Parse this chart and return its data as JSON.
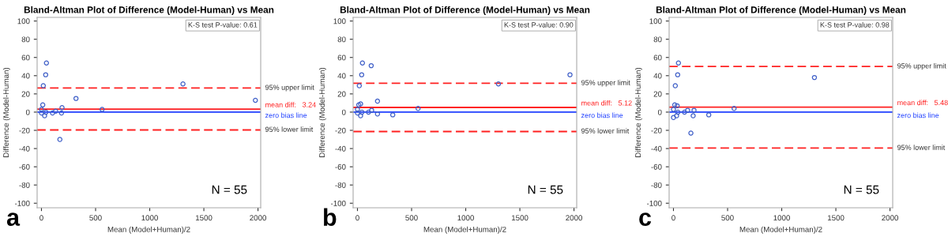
{
  "chart_data": [
    {
      "type": "scatter",
      "title": "Bland-Altman Plot of Difference (Model-Human) vs Mean",
      "xlabel": "Mean (Model+Human)/2",
      "ylabel": "Difference (Model-Human)",
      "marker": "circle",
      "grid": false,
      "legend": false,
      "xlim": [
        -40,
        2025
      ],
      "ylim": [
        -105,
        104
      ],
      "xticks": [
        0,
        500,
        1000,
        1500,
        2000
      ],
      "yticks": [
        -100,
        -80,
        -60,
        -40,
        -20,
        0,
        20,
        40,
        60,
        80,
        100
      ],
      "series": [
        {
          "color": "#4060c8",
          "x": [
            46,
            39,
            17,
            1307,
            1976,
            319,
            560,
            190,
            185,
            131,
            102,
            170,
            29,
            12,
            0,
            41,
            0
          ],
          "values": [
            54,
            41,
            29,
            31,
            13,
            15,
            3,
            5,
            -1,
            1,
            -1,
            -30,
            -4,
            8,
            3,
            0,
            -1
          ]
        }
      ],
      "ref_lines": [
        {
          "axis": "y",
          "value": 26.5,
          "label": "95% upper limit",
          "color": "#ff2020",
          "line_style": "dashed"
        },
        {
          "axis": "y",
          "value": 3.24,
          "label": "mean diff:   3.24",
          "color": "#ff2020",
          "line_style": "solid"
        },
        {
          "axis": "y",
          "value": 0,
          "label": "zero bias line",
          "color": "#2040ff",
          "line_style": "solid"
        },
        {
          "axis": "y",
          "value": -19.6,
          "label": "95% lower limit",
          "color": "#ff2020",
          "line_style": "dashed"
        }
      ],
      "annotations": [
        "K-S test P-value: 0.61",
        "N = 55",
        "a"
      ]
    },
    {
      "type": "scatter",
      "title": "Bland-Altman Plot of Difference (Model-Human) vs Mean",
      "xlabel": "Mean (Model+Human)/2",
      "ylabel": "Difference (Model-Human)",
      "marker": "circle",
      "grid": false,
      "legend": false,
      "xlim": [
        -40,
        2025
      ],
      "ylim": [
        -105,
        104
      ],
      "xticks": [
        0,
        500,
        1000,
        1500,
        2000
      ],
      "yticks": [
        -100,
        -80,
        -60,
        -40,
        -20,
        0,
        20,
        40,
        60,
        80,
        100
      ],
      "series": [
        {
          "color": "#4060c8",
          "x": [
            46,
            39,
            127,
            1963,
            1302,
            17,
            185,
            29,
            12,
            560,
            131,
            102,
            185,
            326,
            29,
            41,
            0,
            0
          ],
          "values": [
            54,
            41,
            51,
            41,
            31,
            29,
            12,
            9,
            8,
            4,
            2,
            0,
            -2,
            -3,
            -4,
            0,
            3,
            -1
          ]
        }
      ],
      "ref_lines": [
        {
          "axis": "y",
          "value": 31.7,
          "label": "95% upper limit",
          "color": "#ff2020",
          "line_style": "dashed"
        },
        {
          "axis": "y",
          "value": 5.12,
          "label": "mean diff:   5.12",
          "color": "#ff2020",
          "line_style": "solid"
        },
        {
          "axis": "y",
          "value": 0,
          "label": "zero bias line",
          "color": "#2040ff",
          "line_style": "solid"
        },
        {
          "axis": "y",
          "value": -21.3,
          "label": "95% lower limit",
          "color": "#ff2020",
          "line_style": "dashed"
        }
      ],
      "annotations": [
        "K-S test P-value: 0.90",
        "N = 55",
        "b"
      ]
    },
    {
      "type": "scatter",
      "title": "Bland-Altman Plot of Difference (Model-Human) vs Mean",
      "xlabel": "Mean (Model+Human)/2",
      "ylabel": "Difference (Model-Human)",
      "marker": "circle",
      "grid": false,
      "legend": false,
      "xlim": [
        -40,
        2025
      ],
      "ylim": [
        -105,
        104
      ],
      "xticks": [
        0,
        500,
        1000,
        1500,
        2000
      ],
      "yticks": [
        -100,
        -80,
        -60,
        -40,
        -20,
        0,
        20,
        40,
        60,
        80,
        100
      ],
      "series": [
        {
          "color": "#4060c8",
          "x": [
            46,
            39,
            17,
            1302,
            161,
            560,
            190,
            131,
            102,
            182,
            326,
            29,
            0,
            34,
            12,
            0,
            41
          ],
          "values": [
            54,
            41,
            29,
            38,
            -23,
            4,
            2,
            2,
            0,
            -4,
            -3,
            -4,
            -6,
            7,
            8,
            3,
            0
          ]
        }
      ],
      "ref_lines": [
        {
          "axis": "y",
          "value": 50.1,
          "label": "95% upper limit",
          "color": "#ff2020",
          "line_style": "dashed"
        },
        {
          "axis": "y",
          "value": 5.48,
          "label": "mean diff:   5.48",
          "color": "#ff2020",
          "line_style": "solid"
        },
        {
          "axis": "y",
          "value": 0,
          "label": "zero bias line",
          "color": "#2040ff",
          "line_style": "solid"
        },
        {
          "axis": "y",
          "value": -39.5,
          "label": "95% lower limit",
          "color": "#ff2020",
          "line_style": "dashed"
        }
      ],
      "annotations": [
        "K-S test P-value: 0.98",
        "N = 55",
        "c"
      ]
    }
  ]
}
